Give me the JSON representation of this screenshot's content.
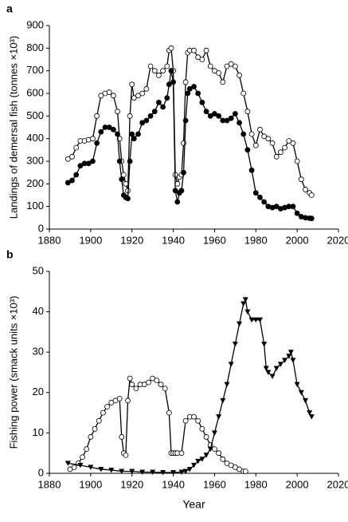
{
  "chart_data": [
    {
      "type": "line",
      "label": "a",
      "y_label": "Landings of demersal fish (tonnes ×10³)",
      "xlim": [
        1880,
        2020
      ],
      "xticks": [
        1880,
        1900,
        1920,
        1940,
        1960,
        1980,
        2000,
        2020
      ],
      "ylim": [
        0,
        900
      ],
      "yticks": [
        0,
        100,
        200,
        300,
        400,
        500,
        600,
        700,
        800,
        900
      ],
      "series": [
        {
          "marker": "circle-open",
          "color": "#000000",
          "x": [
            1889,
            1891,
            1893,
            1895,
            1897,
            1899,
            1901,
            1903,
            1905,
            1907,
            1909,
            1911,
            1913,
            1914,
            1915,
            1916,
            1917,
            1918,
            1919,
            1920,
            1921,
            1923,
            1925,
            1927,
            1929,
            1931,
            1933,
            1935,
            1937,
            1938,
            1939,
            1940,
            1941,
            1942,
            1943,
            1944,
            1945,
            1946,
            1947,
            1948,
            1950,
            1952,
            1954,
            1956,
            1958,
            1960,
            1962,
            1964,
            1966,
            1968,
            1970,
            1972,
            1974,
            1976,
            1978,
            1980,
            1982,
            1984,
            1986,
            1988,
            1990,
            1992,
            1994,
            1996,
            1998,
            2000,
            2002,
            2004,
            2006,
            2007
          ],
          "values": [
            310,
            320,
            360,
            390,
            390,
            395,
            400,
            500,
            590,
            600,
            605,
            590,
            520,
            400,
            300,
            240,
            200,
            170,
            500,
            640,
            580,
            590,
            600,
            620,
            720,
            700,
            680,
            700,
            720,
            790,
            800,
            700,
            240,
            200,
            230,
            240,
            380,
            650,
            780,
            790,
            790,
            760,
            750,
            790,
            720,
            700,
            690,
            650,
            720,
            730,
            720,
            680,
            600,
            520,
            420,
            370,
            440,
            410,
            400,
            380,
            320,
            340,
            360,
            390,
            380,
            300,
            220,
            175,
            160,
            150
          ]
        },
        {
          "marker": "circle-filled",
          "color": "#000000",
          "x": [
            1889,
            1891,
            1893,
            1895,
            1897,
            1899,
            1901,
            1903,
            1905,
            1907,
            1909,
            1911,
            1913,
            1914,
            1915,
            1916,
            1917,
            1918,
            1919,
            1920,
            1921,
            1923,
            1925,
            1927,
            1929,
            1931,
            1933,
            1935,
            1937,
            1938,
            1939,
            1940,
            1941,
            1942,
            1943,
            1944,
            1945,
            1946,
            1947,
            1948,
            1950,
            1952,
            1954,
            1956,
            1958,
            1960,
            1962,
            1964,
            1966,
            1968,
            1970,
            1972,
            1974,
            1976,
            1978,
            1980,
            1982,
            1984,
            1986,
            1988,
            1990,
            1992,
            1994,
            1996,
            1998,
            2000,
            2002,
            2004,
            2006,
            2007
          ],
          "values": [
            205,
            215,
            240,
            280,
            290,
            290,
            300,
            380,
            430,
            450,
            450,
            440,
            420,
            300,
            220,
            150,
            140,
            135,
            300,
            420,
            400,
            420,
            470,
            480,
            500,
            520,
            560,
            540,
            580,
            640,
            700,
            650,
            170,
            120,
            160,
            170,
            250,
            480,
            600,
            620,
            630,
            600,
            560,
            520,
            500,
            510,
            500,
            480,
            480,
            490,
            510,
            470,
            420,
            350,
            260,
            160,
            140,
            120,
            100,
            95,
            100,
            90,
            95,
            100,
            100,
            70,
            55,
            50,
            48,
            47
          ]
        }
      ]
    },
    {
      "type": "line",
      "label": "b",
      "y_label": "Fishing power (smack units ×10³)",
      "x_label": "Year",
      "xlim": [
        1880,
        2020
      ],
      "xticks": [
        1880,
        1900,
        1920,
        1940,
        1960,
        1980,
        2000,
        2020
      ],
      "ylim": [
        0,
        50
      ],
      "yticks": [
        0,
        10,
        20,
        30,
        40,
        50
      ],
      "series": [
        {
          "marker": "circle-open",
          "color": "#000000",
          "x": [
            1890,
            1892,
            1894,
            1896,
            1898,
            1900,
            1902,
            1904,
            1906,
            1908,
            1910,
            1912,
            1914,
            1915,
            1916,
            1917,
            1918,
            1919,
            1920,
            1922,
            1924,
            1926,
            1928,
            1930,
            1932,
            1934,
            1936,
            1938,
            1939,
            1940,
            1941,
            1942,
            1944,
            1946,
            1948,
            1950,
            1952,
            1954,
            1956,
            1958,
            1960,
            1962,
            1964,
            1966,
            1968,
            1970,
            1972,
            1974,
            1975
          ],
          "values": [
            1,
            1.5,
            2.5,
            4,
            6,
            9,
            11,
            13,
            15,
            16.5,
            17.5,
            18,
            18.5,
            9,
            5,
            4.5,
            18,
            23.5,
            22,
            21,
            22,
            22,
            22.5,
            23.5,
            23,
            22,
            21,
            15,
            5,
            5,
            5,
            5,
            5,
            13,
            14,
            14,
            13,
            11,
            9,
            7,
            6,
            5,
            3.5,
            2.5,
            2,
            1.5,
            1,
            0.5,
            0.5
          ]
        },
        {
          "marker": "triangle-down",
          "color": "#000000",
          "x": [
            1889,
            1895,
            1900,
            1905,
            1910,
            1915,
            1920,
            1925,
            1930,
            1935,
            1940,
            1944,
            1946,
            1948,
            1950,
            1952,
            1954,
            1956,
            1958,
            1960,
            1962,
            1964,
            1966,
            1968,
            1970,
            1972,
            1974,
            1975,
            1976,
            1978,
            1980,
            1982,
            1984,
            1985,
            1986,
            1988,
            1990,
            1992,
            1994,
            1996,
            1997,
            1998,
            2000,
            2002,
            2004,
            2006,
            2007
          ],
          "values": [
            2.5,
            2,
            1.5,
            1,
            0.8,
            0.5,
            0.5,
            0.3,
            0.3,
            0.2,
            0.2,
            0.3,
            0.5,
            1,
            2,
            3,
            3.5,
            4.5,
            6,
            10,
            14,
            18,
            22,
            27,
            32,
            37,
            42,
            43,
            40,
            38,
            38,
            38,
            32,
            26,
            25,
            24,
            26,
            27,
            28,
            29,
            30,
            28,
            22,
            20,
            18,
            15,
            14
          ]
        }
      ]
    }
  ]
}
